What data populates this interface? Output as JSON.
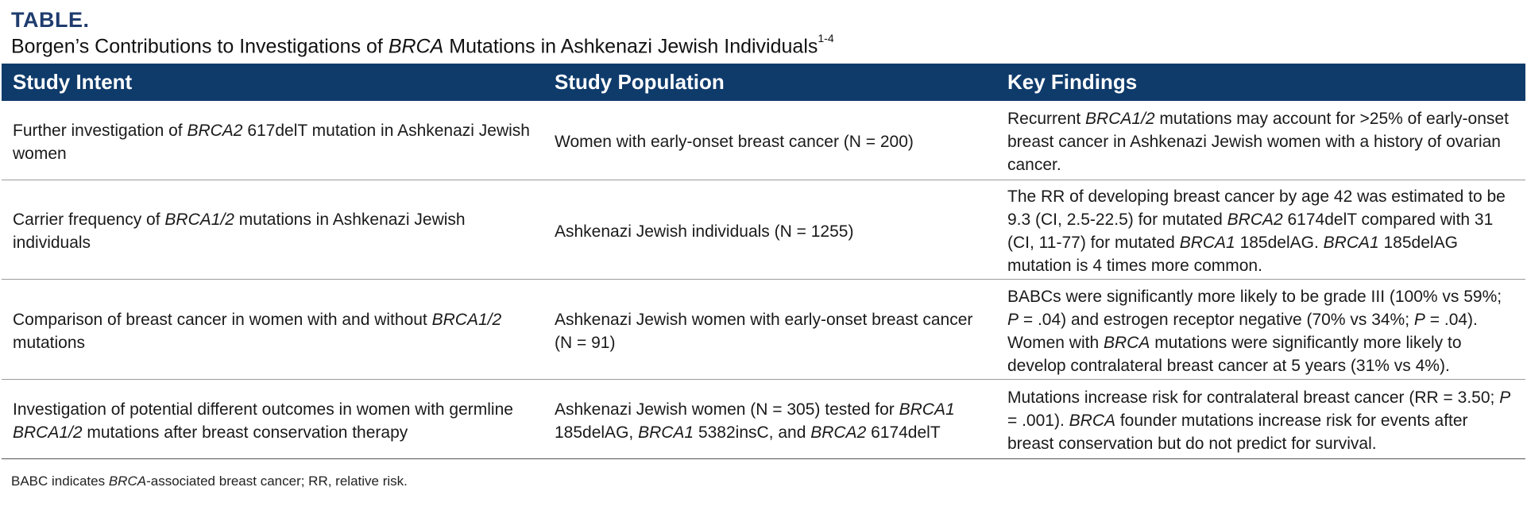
{
  "table_label": "TABLE.",
  "title": {
    "pre": "Borgen’s Contributions to Investigations of ",
    "em": "BRCA",
    "post": " Mutations in Ashkenazi Jewish Individuals",
    "sup": "1-4"
  },
  "headers": [
    "Study Intent",
    "Study Population",
    "Key Findings"
  ],
  "rows": [
    {
      "intent": [
        "Further investigation of ",
        {
          "i": "BRCA2"
        },
        " 617delT mutation in Ashkenazi Jewish women"
      ],
      "population": [
        "Women with early-onset breast cancer (N = 200)"
      ],
      "findings": [
        "Recurrent ",
        {
          "i": "BRCA1/2"
        },
        " mutations may account for >25% of early-onset breast cancer in Ashkenazi Jewish women with a history of ovarian cancer."
      ]
    },
    {
      "intent": [
        "Carrier frequency of ",
        {
          "i": "BRCA1/2"
        },
        " mutations in Ashkenazi Jewish individuals"
      ],
      "population": [
        "Ashkenazi Jewish individuals (N = 1255)"
      ],
      "findings": [
        "The RR of developing breast cancer by age 42 was estimated to be 9.3 (CI, 2.5-22.5) for mutated ",
        {
          "i": "BRCA2"
        },
        " 6174delT compared with 31 (CI, 11-77) for mutated ",
        {
          "i": "BRCA1"
        },
        " 185delAG. ",
        {
          "i": "BRCA1"
        },
        " 185delAG mutation is 4 times more common."
      ]
    },
    {
      "intent": [
        "Comparison of breast cancer in women with and without ",
        {
          "i": "BRCA1/2"
        },
        " mutations"
      ],
      "population": [
        "Ashkenazi Jewish women with early-onset breast cancer (N = 91)"
      ],
      "findings": [
        "BABCs were significantly more likely to be grade III (100% vs 59%; ",
        {
          "i": "P"
        },
        " = .04) and estrogen receptor negative (70% vs 34%; ",
        {
          "i": "P"
        },
        " = .04). Women with ",
        {
          "i": "BRCA"
        },
        " mutations were significantly more likely to develop contralateral breast cancer at 5 years (31% vs 4%)."
      ]
    },
    {
      "intent": [
        "Investigation of potential different outcomes in women with germline ",
        {
          "i": "BRCA1/2"
        },
        " mutations after breast conservation therapy"
      ],
      "population": [
        "Ashkenazi Jewish women (N = 305) tested for ",
        {
          "i": "BRCA1"
        },
        " 185delAG, ",
        {
          "i": "BRCA1"
        },
        " 5382insC, and ",
        {
          "i": "BRCA2"
        },
        " 6174delT"
      ],
      "findings": [
        "Mutations increase risk for contralateral breast cancer (RR = 3.50; ",
        {
          "i": "P"
        },
        " = .001). ",
        {
          "i": "BRCA"
        },
        " founder mutations increase risk for events after breast conservation but do not predict for survival."
      ]
    }
  ],
  "footnote": [
    "BABC indicates ",
    {
      "i": "BRCA"
    },
    "-associated breast cancer; RR, relative risk."
  ]
}
